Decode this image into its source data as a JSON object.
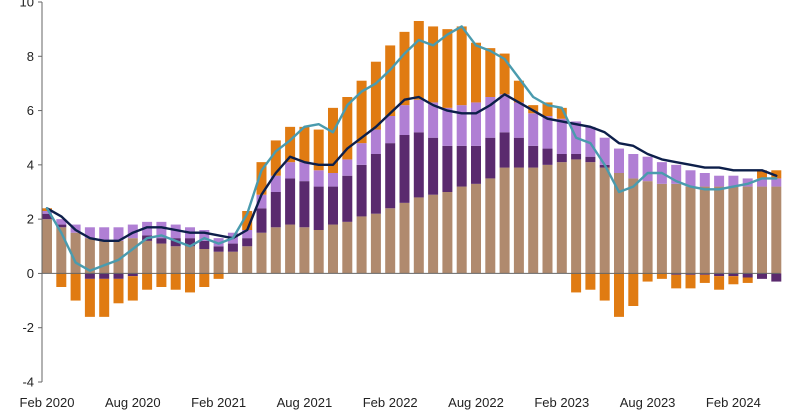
{
  "chart_data": {
    "type": "bar",
    "stacked": true,
    "xlabel": "",
    "ylabel": "",
    "ylim": [
      -4,
      10
    ],
    "yticks": [
      -4,
      -2,
      0,
      2,
      4,
      6,
      8,
      10
    ],
    "grid": false,
    "legend": "none",
    "categories": [
      "Feb 2020",
      "Mar 2020",
      "Apr 2020",
      "May 2020",
      "Jun 2020",
      "Jul 2020",
      "Aug 2020",
      "Sep 2020",
      "Oct 2020",
      "Nov 2020",
      "Dec 2020",
      "Jan 2021",
      "Feb 2021",
      "Mar 2021",
      "Apr 2021",
      "May 2021",
      "Jun 2021",
      "Jul 2021",
      "Aug 2021",
      "Sep 2021",
      "Oct 2021",
      "Nov 2021",
      "Dec 2021",
      "Jan 2022",
      "Feb 2022",
      "Mar 2022",
      "Apr 2022",
      "May 2022",
      "Jun 2022",
      "Jul 2022",
      "Aug 2022",
      "Sep 2022",
      "Oct 2022",
      "Nov 2022",
      "Dec 2022",
      "Jan 2023",
      "Feb 2023",
      "Mar 2023",
      "Apr 2023",
      "May 2023",
      "Jun 2023",
      "Jul 2023",
      "Aug 2023",
      "Sep 2023",
      "Oct 2023",
      "Nov 2023",
      "Dec 2023",
      "Jan 2024",
      "Feb 2024",
      "Mar 2024",
      "Apr 2024",
      "May 2024"
    ],
    "xtick_labels": [
      "Feb 2020",
      "Aug 2020",
      "Feb 2021",
      "Aug 2021",
      "Feb 2022",
      "Aug 2022",
      "Feb 2023",
      "Aug 2023",
      "Feb 2024"
    ],
    "xtick_indices": [
      0,
      6,
      12,
      18,
      24,
      30,
      36,
      42,
      48
    ],
    "colors": {
      "series_brown": "#B08A6E",
      "series_darkpurple": "#5A2A6E",
      "series_lilac": "#B07FD4",
      "series_orange": "#E07B12",
      "line_navy": "#0D1F4A",
      "line_teal": "#4A9BAE",
      "axis": "#666666"
    },
    "series": [
      {
        "kind": "bar",
        "color_key": "series_brown",
        "values": [
          2.0,
          1.7,
          1.5,
          1.3,
          1.2,
          1.2,
          1.3,
          1.2,
          1.1,
          1.0,
          1.0,
          0.9,
          0.8,
          0.8,
          1.0,
          1.5,
          1.7,
          1.8,
          1.7,
          1.6,
          1.8,
          1.9,
          2.1,
          2.2,
          2.4,
          2.6,
          2.8,
          2.9,
          3.0,
          3.2,
          3.3,
          3.5,
          3.9,
          3.9,
          3.9,
          4.0,
          4.1,
          4.2,
          4.1,
          3.9,
          3.7,
          3.5,
          3.4,
          3.3,
          3.3,
          3.2,
          3.2,
          3.2,
          3.2,
          3.2,
          3.2,
          3.2
        ]
      },
      {
        "kind": "bar",
        "color_key": "series_darkpurple",
        "values": [
          0.2,
          0.1,
          0.0,
          -0.2,
          -0.2,
          -0.2,
          -0.1,
          0.2,
          0.2,
          0.3,
          0.3,
          0.3,
          0.2,
          0.3,
          0.3,
          0.9,
          1.3,
          1.7,
          1.7,
          1.6,
          1.4,
          1.7,
          1.9,
          2.2,
          2.4,
          2.5,
          2.4,
          2.1,
          1.7,
          1.5,
          1.4,
          1.5,
          1.3,
          1.1,
          0.8,
          0.6,
          0.3,
          0.2,
          0.2,
          0.1,
          0.0,
          0.0,
          0.0,
          0.0,
          -0.05,
          -0.05,
          -0.05,
          -0.1,
          -0.1,
          -0.15,
          -0.2,
          -0.3
        ]
      },
      {
        "kind": "bar",
        "color_key": "series_lilac",
        "values": [
          0.1,
          0.2,
          0.3,
          0.4,
          0.5,
          0.5,
          0.5,
          0.5,
          0.6,
          0.5,
          0.4,
          0.4,
          0.3,
          0.4,
          0.3,
          0.5,
          0.6,
          0.6,
          0.7,
          0.6,
          0.5,
          0.6,
          0.8,
          0.9,
          1.0,
          1.1,
          1.2,
          1.3,
          1.4,
          1.5,
          1.6,
          1.5,
          1.4,
          1.3,
          1.2,
          1.2,
          1.3,
          1.2,
          1.1,
          1.0,
          0.9,
          0.9,
          0.9,
          0.8,
          0.7,
          0.6,
          0.5,
          0.4,
          0.4,
          0.3,
          0.3,
          0.3
        ]
      },
      {
        "kind": "bar",
        "color_key": "series_orange",
        "values": [
          0.1,
          -0.5,
          -1.0,
          -1.4,
          -1.4,
          -0.9,
          -0.9,
          -0.6,
          -0.5,
          -0.6,
          -0.7,
          -0.5,
          -0.2,
          0.0,
          0.7,
          1.2,
          1.3,
          1.3,
          1.3,
          1.5,
          2.4,
          2.3,
          2.3,
          2.5,
          2.6,
          2.7,
          2.9,
          2.8,
          2.9,
          2.9,
          2.2,
          1.8,
          1.5,
          0.8,
          0.3,
          0.5,
          0.4,
          -0.7,
          -0.6,
          -1.0,
          -1.6,
          -1.2,
          -0.3,
          -0.2,
          -0.5,
          -0.5,
          -0.3,
          -0.5,
          -0.3,
          -0.2,
          0.3,
          0.3
        ]
      },
      {
        "kind": "line",
        "color_key": "line_navy",
        "values": [
          2.4,
          2.1,
          1.6,
          1.3,
          1.2,
          1.2,
          1.5,
          1.7,
          1.7,
          1.6,
          1.5,
          1.5,
          1.4,
          1.3,
          1.6,
          2.9,
          3.7,
          4.3,
          4.1,
          4.0,
          4.0,
          4.6,
          5.0,
          5.4,
          5.9,
          6.4,
          6.5,
          6.2,
          6.0,
          5.9,
          5.9,
          6.2,
          6.6,
          6.3,
          6.0,
          5.7,
          5.6,
          5.5,
          5.4,
          5.2,
          4.8,
          4.7,
          4.4,
          4.2,
          4.1,
          4.0,
          3.9,
          3.9,
          3.8,
          3.8,
          3.8,
          3.6
        ]
      },
      {
        "kind": "line",
        "color_key": "line_teal",
        "values": [
          2.4,
          1.5,
          0.4,
          0.1,
          0.3,
          0.5,
          0.9,
          1.3,
          1.4,
          1.2,
          1.0,
          1.3,
          1.1,
          1.3,
          2.2,
          3.8,
          4.5,
          4.9,
          5.4,
          5.5,
          5.2,
          6.2,
          6.7,
          7.0,
          7.5,
          8.1,
          8.6,
          8.4,
          8.8,
          9.1,
          8.4,
          8.2,
          7.9,
          7.2,
          6.5,
          6.2,
          6.1,
          5.0,
          4.8,
          4.0,
          3.0,
          3.2,
          3.7,
          3.7,
          3.4,
          3.2,
          3.1,
          3.1,
          3.2,
          3.3,
          3.5,
          3.5
        ]
      }
    ]
  }
}
